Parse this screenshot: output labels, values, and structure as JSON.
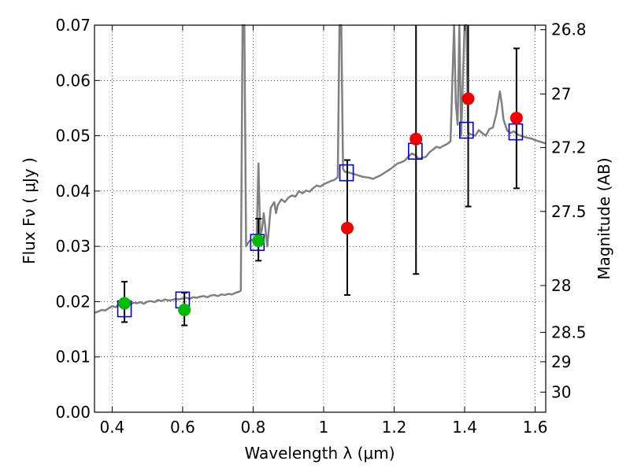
{
  "chart_data": {
    "type": "scatter",
    "xlabel": "Wavelength  λ (μm)",
    "ylabel": "Flux  Fν  ( μJy )",
    "ylabel_right": "Magnitude (AB)",
    "xlim": [
      0.35,
      1.63
    ],
    "ylim": [
      0.0,
      0.07
    ],
    "grid": true,
    "x_ticks": [
      {
        "value": 0.4,
        "label": "0.4"
      },
      {
        "value": 0.6,
        "label": "0.6"
      },
      {
        "value": 0.8,
        "label": "0.8"
      },
      {
        "value": 1.0,
        "label": "1"
      },
      {
        "value": 1.2,
        "label": "1.2"
      },
      {
        "value": 1.4,
        "label": "1.4"
      },
      {
        "value": 1.6,
        "label": "1.6"
      }
    ],
    "y_ticks": [
      {
        "value": 0.0,
        "label": "0.00"
      },
      {
        "value": 0.01,
        "label": "0.01"
      },
      {
        "value": 0.02,
        "label": "0.02"
      },
      {
        "value": 0.03,
        "label": "0.03"
      },
      {
        "value": 0.04,
        "label": "0.04"
      },
      {
        "value": 0.05,
        "label": "0.05"
      },
      {
        "value": 0.06,
        "label": "0.06"
      },
      {
        "value": 0.07,
        "label": "0.07"
      }
    ],
    "mag_ticks": [
      {
        "value": 26.8,
        "label": "26.8"
      },
      {
        "value": 27.0,
        "label": "27"
      },
      {
        "value": 27.2,
        "label": "27.2"
      },
      {
        "value": 27.5,
        "label": "27.5"
      },
      {
        "value": 28.0,
        "label": "28"
      },
      {
        "value": 28.5,
        "label": "28.5"
      },
      {
        "value": 29.0,
        "label": "29"
      },
      {
        "value": 30.0,
        "label": "30"
      }
    ],
    "series": [
      {
        "kind": "line",
        "color": "#808080",
        "x": [
          0.35,
          0.36,
          0.37,
          0.38,
          0.39,
          0.4,
          0.41,
          0.42,
          0.43,
          0.44,
          0.45,
          0.46,
          0.47,
          0.48,
          0.49,
          0.5,
          0.51,
          0.52,
          0.53,
          0.54,
          0.55,
          0.56,
          0.57,
          0.58,
          0.59,
          0.6,
          0.61,
          0.62,
          0.63,
          0.64,
          0.65,
          0.66,
          0.67,
          0.68,
          0.69,
          0.7,
          0.71,
          0.72,
          0.73,
          0.74,
          0.75,
          0.76,
          0.765,
          0.77,
          0.775,
          0.78,
          0.785,
          0.79,
          0.8,
          0.81,
          0.815,
          0.82,
          0.825,
          0.83,
          0.84,
          0.85,
          0.86,
          0.865,
          0.87,
          0.88,
          0.89,
          0.9,
          0.91,
          0.92,
          0.93,
          0.94,
          0.95,
          0.96,
          0.97,
          0.98,
          0.99,
          1.0,
          1.01,
          1.02,
          1.03,
          1.04,
          1.045,
          1.05,
          1.055,
          1.06,
          1.07,
          1.08,
          1.09,
          1.1,
          1.11,
          1.12,
          1.13,
          1.14,
          1.15,
          1.16,
          1.17,
          1.18,
          1.19,
          1.2,
          1.21,
          1.22,
          1.23,
          1.24,
          1.25,
          1.26,
          1.27,
          1.28,
          1.29,
          1.3,
          1.31,
          1.32,
          1.33,
          1.34,
          1.35,
          1.36,
          1.37,
          1.375,
          1.38,
          1.385,
          1.39,
          1.4,
          1.405,
          1.41,
          1.42,
          1.43,
          1.44,
          1.45,
          1.46,
          1.47,
          1.48,
          1.49,
          1.5,
          1.505,
          1.51,
          1.52,
          1.53,
          1.54,
          1.55,
          1.56,
          1.57,
          1.58,
          1.59,
          1.6,
          1.61,
          1.62,
          1.63
        ],
        "y": [
          0.018,
          0.0182,
          0.0185,
          0.0184,
          0.0188,
          0.0192,
          0.019,
          0.0195,
          0.0193,
          0.0196,
          0.0194,
          0.0198,
          0.0197,
          0.0199,
          0.0196,
          0.02,
          0.0201,
          0.0199,
          0.0203,
          0.0201,
          0.0204,
          0.0202,
          0.0203,
          0.0205,
          0.0204,
          0.0206,
          0.0207,
          0.0205,
          0.0208,
          0.0207,
          0.0209,
          0.021,
          0.0208,
          0.0211,
          0.0212,
          0.021,
          0.0213,
          0.0212,
          0.0214,
          0.0213,
          0.0216,
          0.0218,
          0.022,
          0.07,
          0.07,
          0.03,
          0.0305,
          0.031,
          0.0312,
          0.0318,
          0.045,
          0.032,
          0.033,
          0.036,
          0.03,
          0.037,
          0.038,
          0.036,
          0.0375,
          0.0385,
          0.038,
          0.0388,
          0.0392,
          0.039,
          0.04,
          0.0396,
          0.0401,
          0.0399,
          0.0405,
          0.041,
          0.0408,
          0.0412,
          0.0415,
          0.0418,
          0.042,
          0.0425,
          0.07,
          0.07,
          0.044,
          0.0435,
          0.0434,
          0.0432,
          0.043,
          0.0428,
          0.0426,
          0.0425,
          0.0424,
          0.0422,
          0.0425,
          0.0428,
          0.0432,
          0.0436,
          0.044,
          0.0445,
          0.045,
          0.0452,
          0.0455,
          0.0462,
          0.0468,
          0.0465,
          0.0458,
          0.046,
          0.0462,
          0.047,
          0.0475,
          0.048,
          0.0478,
          0.0482,
          0.0485,
          0.049,
          0.07,
          0.056,
          0.052,
          0.07,
          0.05,
          0.07,
          0.07,
          0.0505,
          0.0502,
          0.05,
          0.051,
          0.0505,
          0.05,
          0.0512,
          0.0515,
          0.054,
          0.058,
          0.056,
          0.053,
          0.051,
          0.0505,
          0.0508,
          0.0502,
          0.05,
          0.0498,
          0.0496,
          0.0495,
          0.0492,
          0.049,
          0.0488,
          0.0486
        ]
      },
      {
        "kind": "squares",
        "color": "#0000cc",
        "x": [
          0.435,
          0.6,
          0.812,
          1.065,
          1.26,
          1.405,
          1.545
        ],
        "y": [
          0.0187,
          0.0203,
          0.0307,
          0.0433,
          0.0472,
          0.051,
          0.0507
        ]
      },
      {
        "kind": "points",
        "color": "#00bb00",
        "x": [
          0.435,
          0.605,
          0.815
        ],
        "y": [
          0.0197,
          0.0185,
          0.031
        ],
        "yerr_low": [
          0.0163,
          0.0157,
          0.0274
        ],
        "yerr_high": [
          0.0236,
          0.0216,
          0.035
        ]
      },
      {
        "kind": "points",
        "color": "#ee0000",
        "x": [
          1.067,
          1.262,
          1.41,
          1.547
        ],
        "y": [
          0.0333,
          0.0494,
          0.0567,
          0.0532
        ],
        "yerr_low": [
          0.0212,
          0.025,
          0.0372,
          0.0405
        ],
        "yerr_high": [
          0.0456,
          0.07,
          0.07,
          0.0658
        ]
      }
    ]
  }
}
